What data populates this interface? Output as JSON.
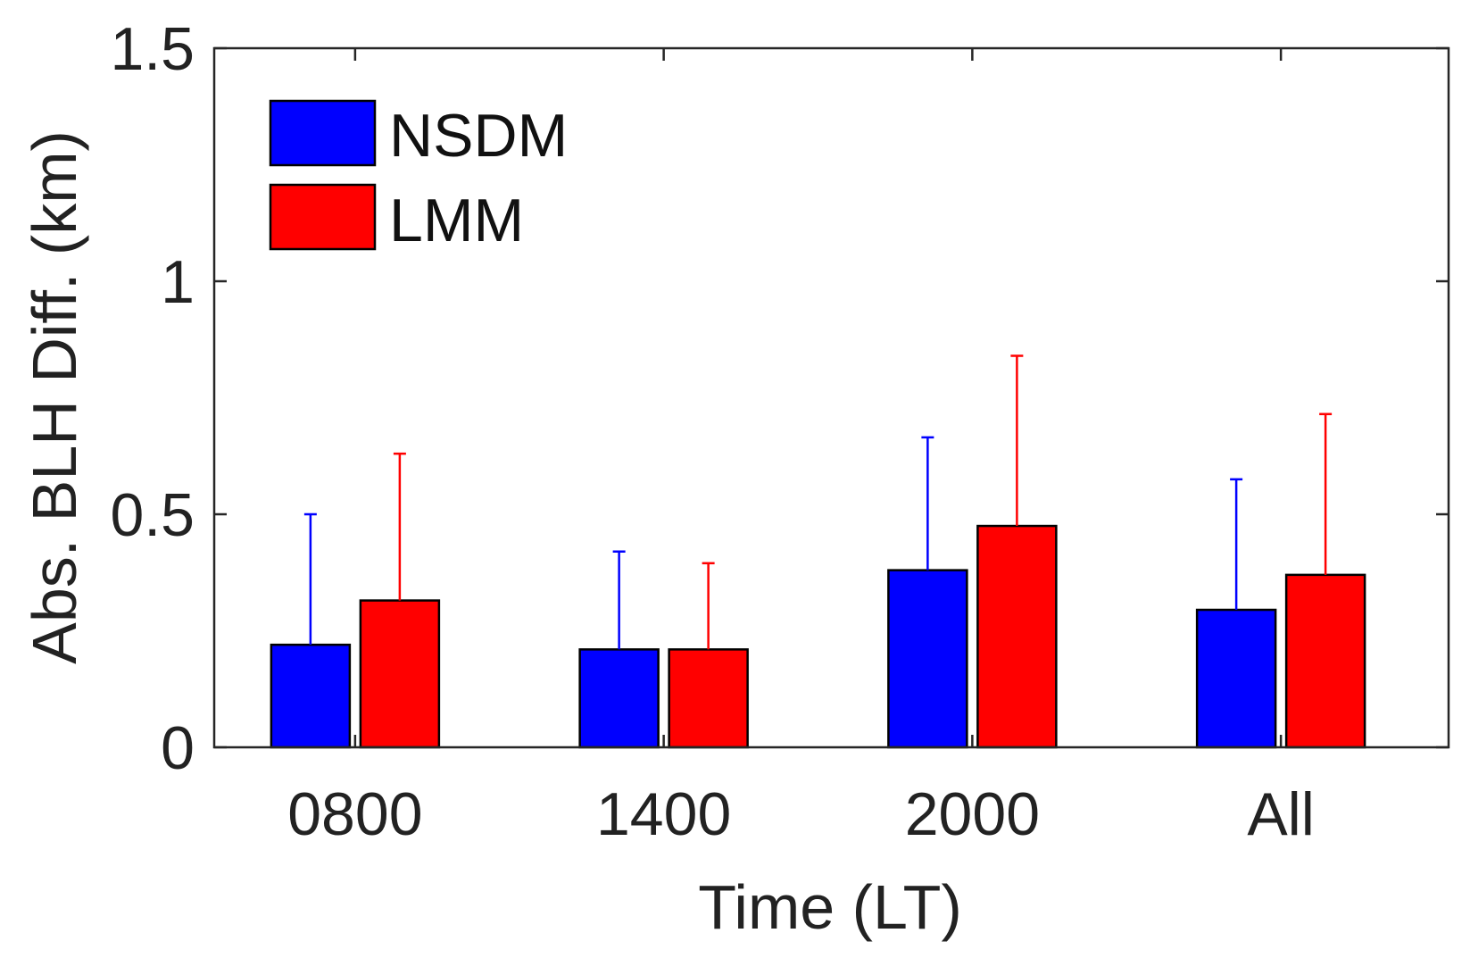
{
  "chart_data": {
    "type": "bar",
    "title": "",
    "xlabel": "Time  (LT)",
    "ylabel": "Abs. BLH Diff. (km)",
    "categories": [
      "0800",
      "1400",
      "2000",
      "All"
    ],
    "ylim": [
      0,
      1.5
    ],
    "yticks": [
      0,
      0.5,
      1,
      1.5
    ],
    "ytick_labels": [
      "0",
      "0.5",
      "1",
      "1.5"
    ],
    "grid": false,
    "legend_position": "top-left",
    "series": [
      {
        "name": "NSDM",
        "color": "#0000ff",
        "values": [
          0.22,
          0.21,
          0.38,
          0.295
        ],
        "error_upper": [
          0.5,
          0.42,
          0.665,
          0.575
        ]
      },
      {
        "name": "LMM",
        "color": "#ff0000",
        "values": [
          0.315,
          0.21,
          0.475,
          0.37
        ],
        "error_upper": [
          0.63,
          0.395,
          0.84,
          0.715
        ]
      }
    ]
  }
}
